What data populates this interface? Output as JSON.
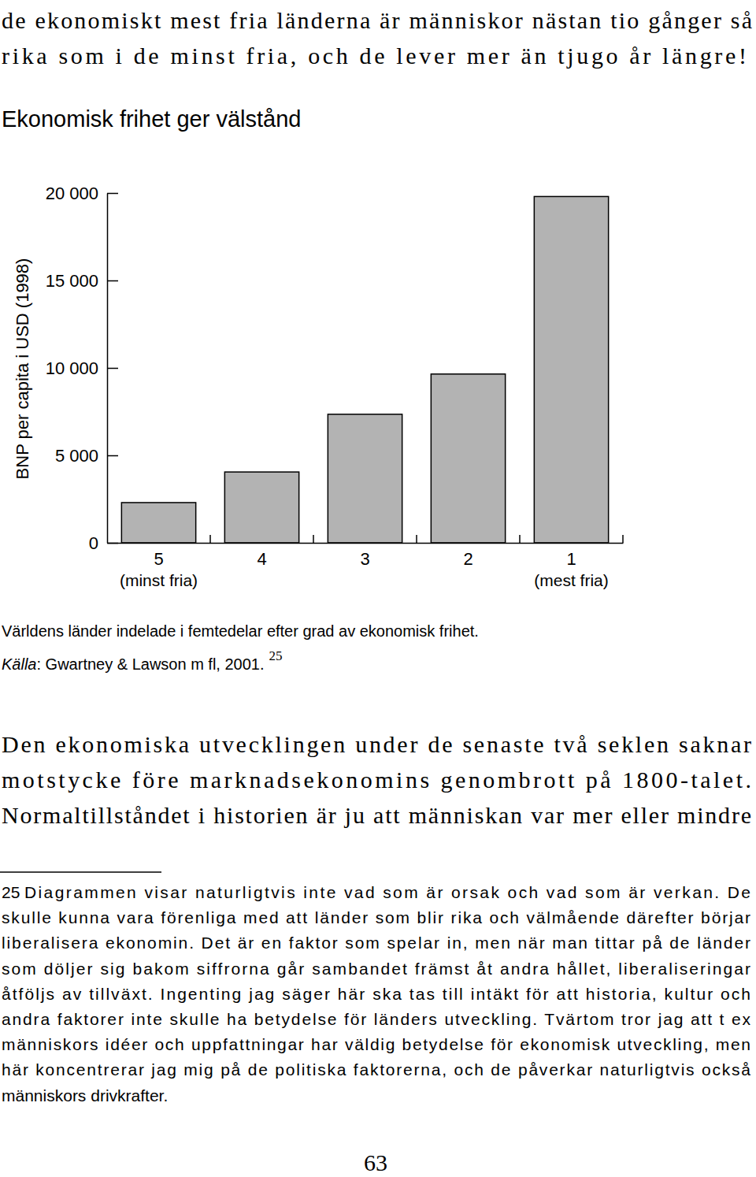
{
  "page": {
    "text_top": [
      "de ekonomiskt mest fria länderna är människor nästan tio gånger så",
      "rika som i de minst fria, och de lever mer än tjugo år längre!"
    ],
    "caption": "Världens länder indelade i femtedelar efter grad av ekonomisk frihet.",
    "source": {
      "label": "Källa",
      "text": ": Gwartney & Lawson m fl, 2001.",
      "note_ref": 25
    },
    "body": [
      "Den ekonomiska utvecklingen under de senaste två seklen saknar",
      "motstycke före marknadsekonomins genombrott på 1800-talet.",
      "Normaltillståndet i historien är ju att människan var mer eller mindre"
    ],
    "footnote": {
      "number": 25,
      "lines": [
        "Diagrammen visar naturligtvis inte vad som är orsak och vad som är verkan. De",
        "skulle kunna vara förenliga med att länder som blir rika och välmående därefter börjar",
        "liberalisera ekonomin. Det är en faktor som spelar in, men när man tittar på de länder",
        "som döljer sig bakom siffrorna går sambandet främst åt andra hållet, liberaliseringar",
        "åtföljs av tillväxt. Ingenting jag säger här ska tas till intäkt för att historia, kultur och",
        "andra faktorer inte skulle ha betydelse för länders utveckling. Tvärtom tror jag att t ex",
        "människors idéer och uppfattningar har väldig betydelse för ekonomisk utveckling, men",
        "här koncentrerar jag mig på de politiska faktorerna, och de påverkar naturligtvis också",
        "människors drivkrafter."
      ]
    },
    "page_number": 63
  },
  "chart_data": {
    "type": "bar",
    "title": "Ekonomisk frihet ger välstånd",
    "y_label": "BNP per capita i USD (1998)",
    "categories": [
      "5",
      "4",
      "3",
      "2",
      "1"
    ],
    "category_sublabels": [
      "(minst fria)",
      null,
      null,
      null,
      "(mest fria)"
    ],
    "values": [
      2300,
      4050,
      7350,
      9650,
      19800
    ],
    "color": "#b3b3b3",
    "ylim": [
      0,
      20000
    ],
    "yticks": [
      0,
      {
        "value": 5000,
        "label": "5 000"
      },
      {
        "value": 10000,
        "label": "10 000"
      },
      {
        "value": 15000,
        "label": "15 000"
      },
      {
        "value": 20000,
        "label": "20 000"
      }
    ],
    "grid": false
  }
}
